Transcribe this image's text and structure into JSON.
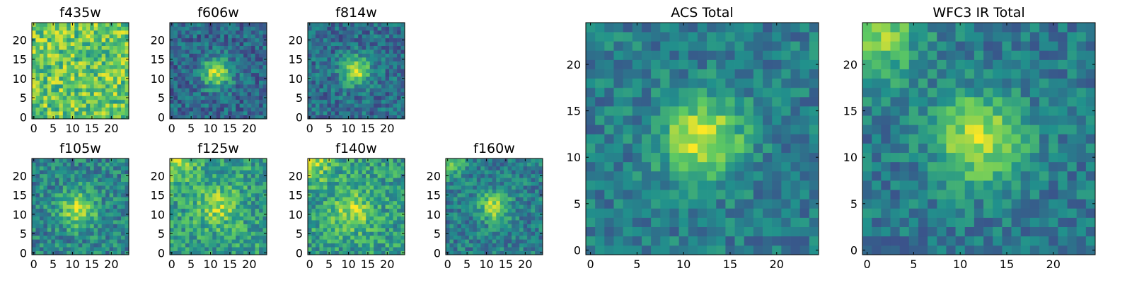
{
  "figure": {
    "background": "#ffffff",
    "colormap": "viridis",
    "colormap_stops": [
      "#440154",
      "#3b528b",
      "#21918c",
      "#5ec962",
      "#fde725"
    ]
  },
  "chart_data": [
    {
      "type": "heatmap",
      "title": "f435w",
      "grid": [
        25,
        25
      ],
      "xticks": [
        "0",
        "5",
        "10",
        "15",
        "20"
      ],
      "yticks": [
        "0",
        "5",
        "10",
        "15",
        "20"
      ],
      "xlim": [
        0,
        25
      ],
      "ylim": [
        0,
        25
      ],
      "blob": {
        "center": [
          12,
          12
        ],
        "sigma": 3.0,
        "strength": 0.0
      },
      "base_level": 0.74,
      "noise_amplitude": 0.48,
      "seed": 11,
      "corner_glow": null
    },
    {
      "type": "heatmap",
      "title": "f606w",
      "grid": [
        25,
        25
      ],
      "xticks": [
        "0",
        "5",
        "10",
        "15",
        "20"
      ],
      "yticks": [
        "0",
        "5",
        "10",
        "15",
        "20"
      ],
      "xlim": [
        0,
        25
      ],
      "ylim": [
        0,
        25
      ],
      "blob": {
        "center": [
          11.5,
          11.5
        ],
        "sigma": 2.6,
        "strength": 0.58
      },
      "base_level": 0.34,
      "noise_amplitude": 0.34,
      "seed": 23,
      "corner_glow": null
    },
    {
      "type": "heatmap",
      "title": "f814w",
      "grid": [
        25,
        25
      ],
      "xticks": [
        "0",
        "5",
        "10",
        "15",
        "20"
      ],
      "yticks": [
        "0",
        "5",
        "10",
        "15",
        "20"
      ],
      "xlim": [
        0,
        25
      ],
      "ylim": [
        0,
        25
      ],
      "blob": {
        "center": [
          12,
          12
        ],
        "sigma": 2.6,
        "strength": 0.55
      },
      "base_level": 0.36,
      "noise_amplitude": 0.34,
      "seed": 37,
      "corner_glow": null
    },
    {
      "type": "heatmap",
      "title": "f105w",
      "grid": [
        25,
        25
      ],
      "xticks": [
        "0",
        "5",
        "10",
        "15",
        "20"
      ],
      "yticks": [
        "0",
        "5",
        "10",
        "15",
        "20"
      ],
      "xlim": [
        0,
        25
      ],
      "ylim": [
        0,
        25
      ],
      "blob": {
        "center": [
          11.5,
          11.5
        ],
        "sigma": 3.4,
        "strength": 0.42
      },
      "base_level": 0.45,
      "noise_amplitude": 0.38,
      "seed": 41,
      "corner_glow": null
    },
    {
      "type": "heatmap",
      "title": "f125w",
      "grid": [
        25,
        25
      ],
      "xticks": [
        "0",
        "5",
        "10",
        "15",
        "20"
      ],
      "yticks": [
        "0",
        "5",
        "10",
        "15",
        "20"
      ],
      "xlim": [
        0,
        25
      ],
      "ylim": [
        0,
        25
      ],
      "blob": {
        "center": [
          12,
          12
        ],
        "sigma": 3.6,
        "strength": 0.28
      },
      "base_level": 0.56,
      "noise_amplitude": 0.4,
      "seed": 53,
      "corner_glow": {
        "corner": "top-left",
        "strength": 0.3,
        "sigma": 4
      }
    },
    {
      "type": "heatmap",
      "title": "f140w",
      "grid": [
        25,
        25
      ],
      "xticks": [
        "0",
        "5",
        "10",
        "15",
        "20"
      ],
      "yticks": [
        "0",
        "5",
        "10",
        "15",
        "20"
      ],
      "xlim": [
        0,
        25
      ],
      "ylim": [
        0,
        25
      ],
      "blob": {
        "center": [
          11,
          11
        ],
        "sigma": 3.6,
        "strength": 0.3
      },
      "base_level": 0.56,
      "noise_amplitude": 0.4,
      "seed": 67,
      "corner_glow": {
        "corner": "top-left",
        "strength": 0.3,
        "sigma": 4
      }
    },
    {
      "type": "heatmap",
      "title": "f160w",
      "grid": [
        25,
        25
      ],
      "xticks": [
        "0",
        "5",
        "10",
        "15",
        "20"
      ],
      "yticks": [
        "0",
        "5",
        "10",
        "15",
        "20"
      ],
      "xlim": [
        0,
        25
      ],
      "ylim": [
        0,
        25
      ],
      "blob": {
        "center": [
          12,
          12
        ],
        "sigma": 2.8,
        "strength": 0.45
      },
      "base_level": 0.42,
      "noise_amplitude": 0.34,
      "seed": 71,
      "corner_glow": {
        "corner": "top-left",
        "strength": 0.35,
        "sigma": 3
      }
    },
    {
      "type": "heatmap",
      "title": "ACS Total",
      "grid": [
        25,
        25
      ],
      "xticks": [
        "0",
        "5",
        "10",
        "15",
        "20"
      ],
      "yticks": [
        "0",
        "5",
        "10",
        "15",
        "20"
      ],
      "xlim": [
        0,
        25
      ],
      "ylim": [
        0,
        25
      ],
      "blob": {
        "center": [
          12,
          12
        ],
        "sigma": 3.0,
        "strength": 0.55
      },
      "base_level": 0.42,
      "noise_amplitude": 0.3,
      "seed": 83,
      "corner_glow": null
    },
    {
      "type": "heatmap",
      "title": "WFC3 IR Total",
      "grid": [
        25,
        25
      ],
      "xticks": [
        "0",
        "5",
        "10",
        "15",
        "20"
      ],
      "yticks": [
        "0",
        "5",
        "10",
        "15",
        "20"
      ],
      "xlim": [
        0,
        25
      ],
      "ylim": [
        0,
        25
      ],
      "blob": {
        "center": [
          12,
          12
        ],
        "sigma": 3.4,
        "strength": 0.5
      },
      "base_level": 0.4,
      "noise_amplitude": 0.3,
      "seed": 97,
      "corner_glow": {
        "corner": "top-left",
        "strength": 0.45,
        "sigma": 4
      }
    }
  ]
}
